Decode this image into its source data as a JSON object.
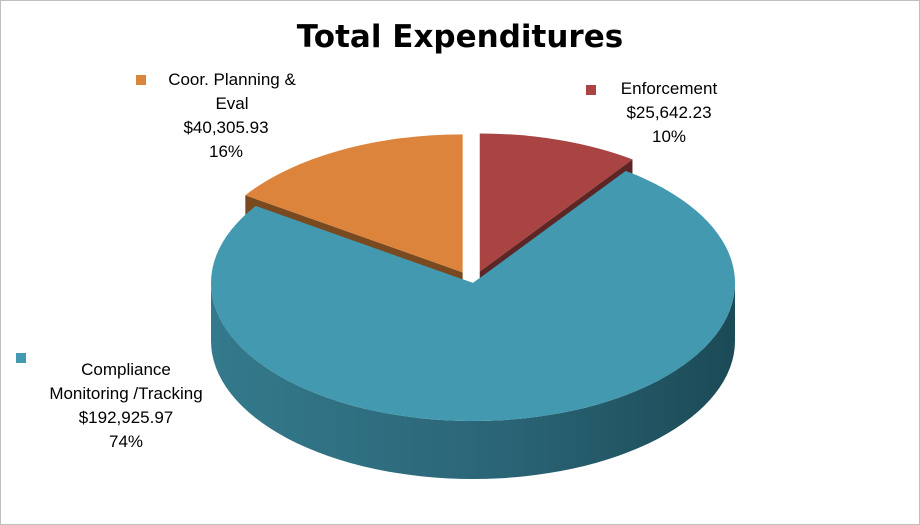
{
  "chart_data": {
    "type": "pie",
    "title": "Total Expenditures",
    "slices": [
      {
        "label_lines": [
          "Enforcement"
        ],
        "value_text": "$25,642.23",
        "percent_text": "10%",
        "value": 25642.23,
        "percent": 10,
        "color": "#A94442"
      },
      {
        "label_lines": [
          "Compliance",
          "Monitoring /Tracking"
        ],
        "value_text": "$192,925.97",
        "percent_text": "74%",
        "value": 192925.97,
        "percent": 74,
        "color": "#4299B0"
      },
      {
        "label_lines": [
          "Coor. Planning &",
          "Eval"
        ],
        "value_text": "$40,305.93",
        "percent_text": "16%",
        "value": 40305.93,
        "percent": 16,
        "color": "#DC843B"
      }
    ],
    "style": "3d-exploded"
  }
}
